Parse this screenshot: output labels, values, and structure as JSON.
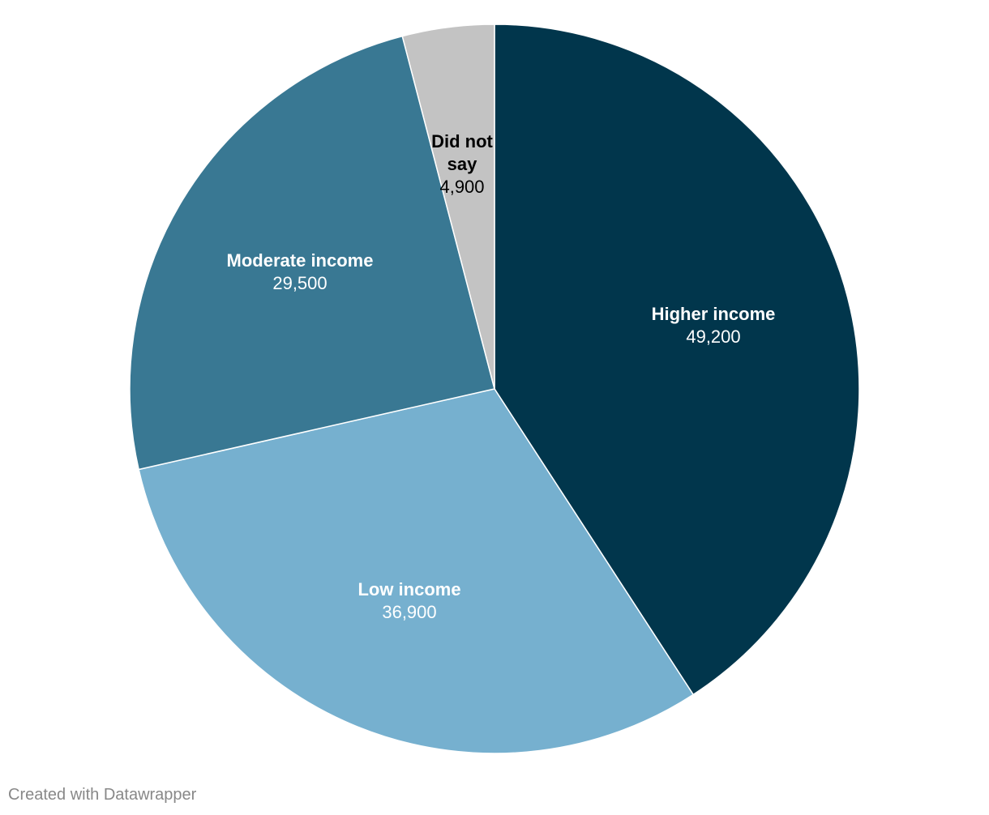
{
  "chart_data": {
    "type": "pie",
    "title": "",
    "start": "12 o'clock, clockwise",
    "slices": [
      {
        "label": "Higher income",
        "value": 49200,
        "display_value": "49,200",
        "color": "#01364c",
        "label_color": "#ffffff"
      },
      {
        "label": "Low income",
        "value": 36900,
        "display_value": "36,900",
        "color": "#76b0cf",
        "label_color": "#ffffff"
      },
      {
        "label": "Moderate income",
        "value": 29500,
        "display_value": "29,500",
        "color": "#397893",
        "label_color": "#ffffff"
      },
      {
        "label": "Did not say",
        "value": 4900,
        "display_value": "4,900",
        "color": "#c3c3c3",
        "label_color": "#000000"
      }
    ]
  },
  "footer": {
    "credit": "Created with Datawrapper"
  }
}
